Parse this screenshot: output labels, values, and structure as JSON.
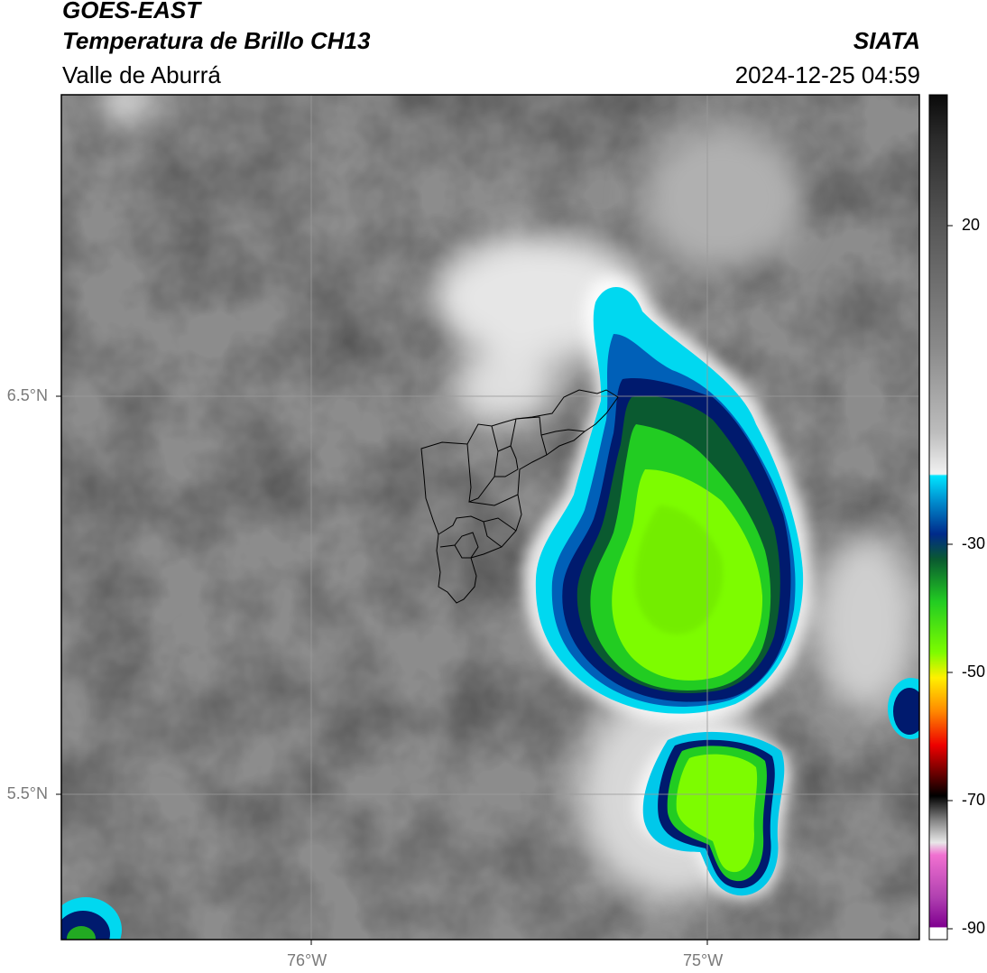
{
  "header": {
    "satellite": "GOES-EAST",
    "product": "Temperatura de Brillo CH13",
    "region": "Valle de Aburrá",
    "agency": "SIATA",
    "datetime": "2024-12-25 04:59"
  },
  "map": {
    "lat_labels": [
      "6.5°N",
      "5.5°N"
    ],
    "lon_labels": [
      "76°W",
      "75°W"
    ],
    "boundary_region": "Valle de Aburrá municipalities outline"
  },
  "colorbar": {
    "tick_labels": [
      "20",
      "-30",
      "-50",
      "-70",
      "-90"
    ],
    "colors": {
      "cyan": "#00e5ff",
      "blue": "#0050b0",
      "navy": "#001a6e",
      "dark_green": "#0a5a30",
      "green": "#22cc22",
      "lime": "#7dfc00",
      "yellow": "#fff000",
      "orange": "#ff8800",
      "red": "#ee0000",
      "dark_red": "#700000",
      "black": "#000000",
      "magenta": "#e060c0",
      "purple": "#800090"
    }
  }
}
